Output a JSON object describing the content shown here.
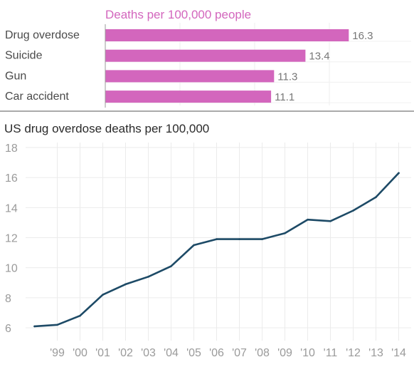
{
  "chart_data": [
    {
      "type": "bar",
      "orientation": "horizontal",
      "title": "Deaths per 100,000 people",
      "categories": [
        "Drug overdose",
        "Suicide",
        "Gun",
        "Car accident"
      ],
      "values": [
        16.3,
        13.4,
        11.3,
        11.1
      ],
      "value_labels": [
        "16.3",
        "13.4",
        "11.3",
        "11.1"
      ],
      "xlim": [
        0,
        20
      ],
      "grid": true,
      "bar_color": "#d366bd",
      "title_color": "#d366bd"
    },
    {
      "type": "line",
      "title": "US drug overdose deaths per 100,000",
      "x": [
        1998,
        1999,
        2000,
        2001,
        2002,
        2003,
        2004,
        2005,
        2006,
        2007,
        2008,
        2009,
        2010,
        2011,
        2012,
        2013,
        2014
      ],
      "x_tick_values": [
        1999,
        2000,
        2001,
        2002,
        2003,
        2004,
        2005,
        2006,
        2007,
        2008,
        2009,
        2010,
        2011,
        2012,
        2013,
        2014
      ],
      "x_tick_labels": [
        "'99",
        "'00",
        "'01",
        "'02",
        "'03",
        "'04",
        "'05",
        "'06",
        "'07",
        "'08",
        "'09",
        "'10",
        "'11",
        "'12",
        "'13",
        "'14"
      ],
      "y_ticks": [
        6,
        8,
        10,
        12,
        14,
        16,
        18
      ],
      "y_tick_labels": [
        "6",
        "8",
        "10",
        "12",
        "14",
        "16",
        "18"
      ],
      "ylim": [
        5.5,
        18
      ],
      "series": [
        {
          "values": [
            6.1,
            6.2,
            6.8,
            8.2,
            8.9,
            9.4,
            10.1,
            11.5,
            11.9,
            11.9,
            11.9,
            12.3,
            13.2,
            13.1,
            13.8,
            14.7,
            16.3
          ]
        }
      ],
      "grid": true,
      "line_color": "#1d4a66"
    }
  ]
}
